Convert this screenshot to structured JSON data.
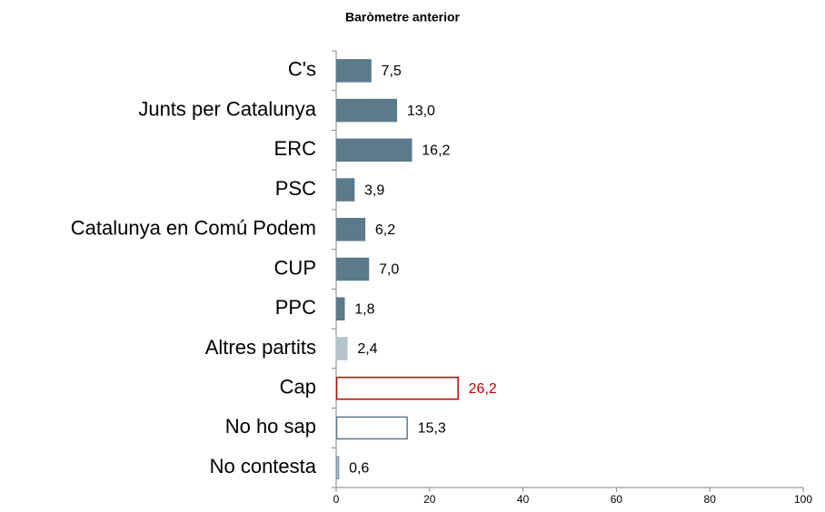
{
  "chart_data": {
    "type": "hbar",
    "title": "Baròmetre anterior",
    "categories": [
      "C's",
      "Junts per Catalunya",
      "ERC",
      "PSC",
      "Catalunya en Comú Podem",
      "CUP",
      "PPC",
      "Altres partits",
      "Cap",
      "No ho sap",
      "No contesta"
    ],
    "values": [
      7.5,
      13.0,
      16.2,
      3.9,
      6.2,
      7.0,
      1.8,
      2.4,
      26.2,
      15.3,
      0.6
    ],
    "value_labels": [
      "7,5",
      "13,0",
      "16,2",
      "3,9",
      "6,2",
      "7,0",
      "1,8",
      "2,4",
      "26,2",
      "15,3",
      "0,6"
    ],
    "fill_colors": [
      "#5b7a8c",
      "#5b7a8c",
      "#5b7a8c",
      "#5b7a8c",
      "#5b7a8c",
      "#5b7a8c",
      "#5b7a8c",
      "#b4c3cc",
      "#ffffff",
      "#ffffff",
      "#dce4ea"
    ],
    "edge_colors": [
      "#5b7a8c",
      "#5b7a8c",
      "#5b7a8c",
      "#5b7a8c",
      "#5b7a8c",
      "#5b7a8c",
      "#5b7a8c",
      "#b4c3cc",
      "#c00000",
      "#5b7a8c",
      "#7f98a8"
    ],
    "label_colors": [
      "#000000",
      "#000000",
      "#000000",
      "#000000",
      "#000000",
      "#000000",
      "#000000",
      "#000000",
      "#c00000",
      "#000000",
      "#000000"
    ],
    "xlim": [
      0,
      100
    ],
    "xticks": [
      0,
      20,
      40,
      60,
      80,
      100
    ]
  }
}
